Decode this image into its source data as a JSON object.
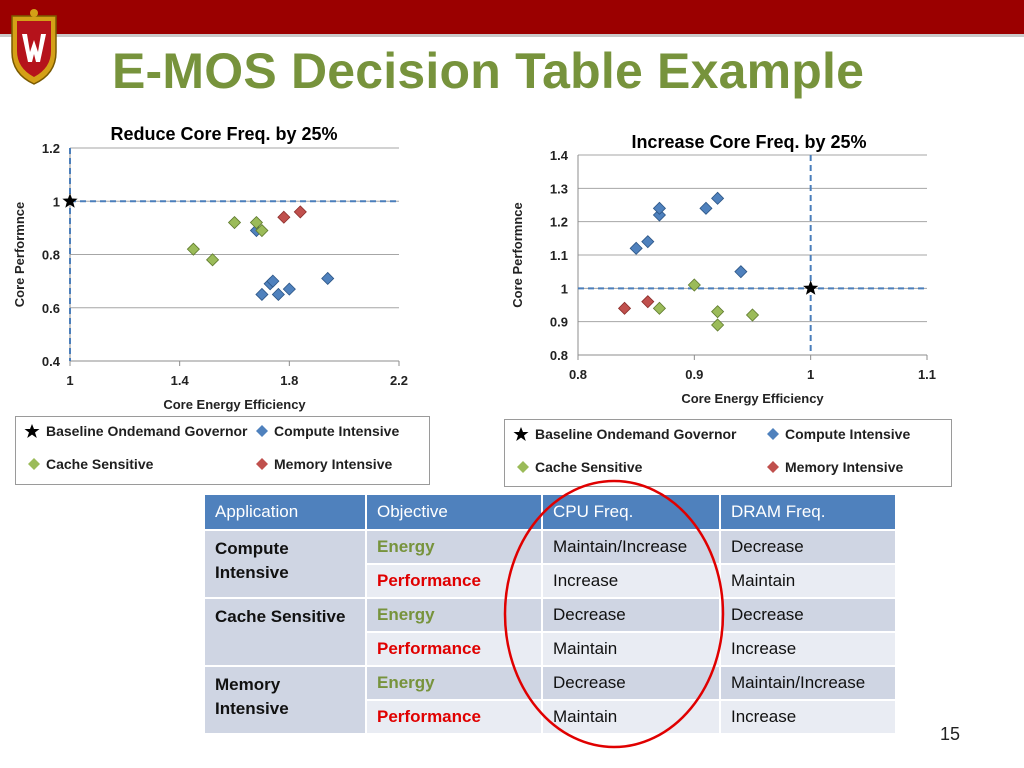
{
  "title": "E-MOS Decision Table Example",
  "page_number": "15",
  "colors": {
    "topbar": "#9b0000",
    "title": "#77933c",
    "compute": "#4f81bd",
    "cache": "#77933c",
    "memory": "#c0504d",
    "baseline": "#000000",
    "energy_text": "#77933c",
    "performance_text": "#e00000",
    "ellipse": "#e00000"
  },
  "legend": {
    "baseline": "Baseline Ondemand Governor",
    "compute": "Compute Intensive",
    "cache": "Cache Sensitive",
    "memory": "Memory Intensive"
  },
  "chart_data": [
    {
      "type": "scatter",
      "title": "Reduce Core Freq. by 25%",
      "xlabel": "Core Energy Efficiency",
      "ylabel": "Core Performnce",
      "xlim": [
        1,
        2.2
      ],
      "ylim": [
        0.4,
        1.2
      ],
      "xticks": [
        "1",
        "1.4",
        "1.8",
        "2.2"
      ],
      "yticks": [
        "0.4",
        "0.6",
        "0.8",
        "1",
        "1.2"
      ],
      "grid": "horizontal",
      "baseline_point": [
        1,
        1
      ],
      "series": [
        {
          "name": "Compute Intensive",
          "points": [
            [
              1.68,
              0.89
            ],
            [
              1.7,
              0.65
            ],
            [
              1.73,
              0.69
            ],
            [
              1.74,
              0.7
            ],
            [
              1.76,
              0.65
            ],
            [
              1.8,
              0.67
            ],
            [
              1.94,
              0.71
            ]
          ]
        },
        {
          "name": "Cache Sensitive",
          "points": [
            [
              1.45,
              0.82
            ],
            [
              1.52,
              0.78
            ],
            [
              1.6,
              0.92
            ],
            [
              1.68,
              0.92
            ],
            [
              1.7,
              0.89
            ]
          ]
        },
        {
          "name": "Memory Intensive",
          "points": [
            [
              1.78,
              0.94
            ],
            [
              1.84,
              0.96
            ]
          ]
        }
      ]
    },
    {
      "type": "scatter",
      "title": "Increase Core Freq. by 25%",
      "xlabel": "Core Energy Efficiency",
      "ylabel": "Core Performnce",
      "xlim": [
        0.8,
        1.1
      ],
      "ylim": [
        0.8,
        1.4
      ],
      "xticks": [
        "0.8",
        "0.9",
        "1",
        "1.1"
      ],
      "yticks": [
        "0.8",
        "0.9",
        "1",
        "1.1",
        "1.2",
        "1.3",
        "1.4"
      ],
      "grid": "horizontal",
      "baseline_point": [
        1,
        1
      ],
      "series": [
        {
          "name": "Compute Intensive",
          "points": [
            [
              0.85,
              1.12
            ],
            [
              0.86,
              1.14
            ],
            [
              0.87,
              1.22
            ],
            [
              0.87,
              1.24
            ],
            [
              0.91,
              1.24
            ],
            [
              0.92,
              1.27
            ],
            [
              0.94,
              1.05
            ]
          ]
        },
        {
          "name": "Cache Sensitive",
          "points": [
            [
              0.87,
              0.94
            ],
            [
              0.9,
              1.01
            ],
            [
              0.92,
              0.93
            ],
            [
              0.92,
              0.89
            ],
            [
              0.95,
              0.92
            ]
          ]
        },
        {
          "name": "Memory Intensive",
          "points": [
            [
              0.84,
              0.94
            ],
            [
              0.86,
              0.96
            ]
          ]
        }
      ]
    }
  ],
  "table": {
    "headers": [
      "Application",
      "Objective",
      "CPU Freq.",
      "DRAM Freq."
    ],
    "groups": [
      {
        "application": "Compute Intensive",
        "rows": [
          {
            "objective": "Energy",
            "cpu": "Maintain/Increase",
            "dram": "Decrease"
          },
          {
            "objective": "Performance",
            "cpu": "Increase",
            "dram": "Maintain"
          }
        ]
      },
      {
        "application": "Cache Sensitive",
        "rows": [
          {
            "objective": "Energy",
            "cpu": "Decrease",
            "dram": "Decrease"
          },
          {
            "objective": "Performance",
            "cpu": "Maintain",
            "dram": "Increase"
          }
        ]
      },
      {
        "application": "Memory Intensive",
        "rows": [
          {
            "objective": "Energy",
            "cpu": "Decrease",
            "dram": "Maintain/Increase"
          },
          {
            "objective": "Performance",
            "cpu": "Maintain",
            "dram": "Increase"
          }
        ]
      }
    ]
  }
}
